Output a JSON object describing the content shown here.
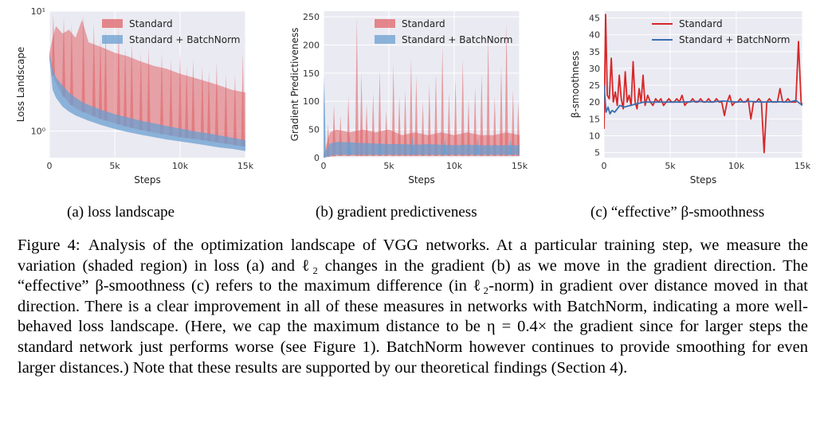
{
  "chart_data": [
    {
      "type": "area",
      "panel": "a",
      "title": "",
      "xlabel": "Steps",
      "ylabel": "Loss Landscape",
      "yscale": "log",
      "xlim": [
        0,
        15000
      ],
      "ylim": [
        0.6,
        10
      ],
      "xticks": [
        0,
        5000,
        10000,
        15000
      ],
      "xtick_labels": [
        "0",
        "5k",
        "10k",
        "15k"
      ],
      "yticks": [
        1,
        10
      ],
      "ytick_labels": [
        "10⁰",
        "10¹"
      ],
      "grid": true,
      "legend_position": "top-center",
      "series": [
        {
          "name": "Standard",
          "color": "#e06468",
          "x": [
            0,
            250,
            500,
            1000,
            1500,
            2000,
            2500,
            3000,
            4000,
            5000,
            6000,
            7000,
            8000,
            9000,
            10000,
            11000,
            12000,
            13000,
            14000,
            15000
          ],
          "lower": [
            4.0,
            3.0,
            2.5,
            2.0,
            1.7,
            1.55,
            1.45,
            1.38,
            1.25,
            1.16,
            1.08,
            1.02,
            0.97,
            0.93,
            0.89,
            0.86,
            0.83,
            0.8,
            0.77,
            0.74
          ],
          "upper": [
            4.5,
            6.0,
            7.5,
            6.5,
            7.0,
            6.0,
            8.5,
            5.5,
            5.0,
            4.5,
            4.2,
            3.8,
            3.5,
            3.3,
            3.0,
            2.8,
            2.6,
            2.4,
            2.2,
            2.1
          ],
          "spikes": [
            {
              "x": 300,
              "y": 9.5
            },
            {
              "x": 1100,
              "y": 9.0
            },
            {
              "x": 1700,
              "y": 8.0
            },
            {
              "x": 2600,
              "y": 9.5
            },
            {
              "x": 3400,
              "y": 8.0
            },
            {
              "x": 3900,
              "y": 6.0
            },
            {
              "x": 4300,
              "y": 7.0
            },
            {
              "x": 5300,
              "y": 7.5
            },
            {
              "x": 5800,
              "y": 5.0
            },
            {
              "x": 6300,
              "y": 5.5
            },
            {
              "x": 7000,
              "y": 4.5
            },
            {
              "x": 7600,
              "y": 5.0
            },
            {
              "x": 8600,
              "y": 4.5
            },
            {
              "x": 9300,
              "y": 4.0
            },
            {
              "x": 10000,
              "y": 4.5
            },
            {
              "x": 10500,
              "y": 3.5
            },
            {
              "x": 11000,
              "y": 4.0
            },
            {
              "x": 11700,
              "y": 3.5
            },
            {
              "x": 12200,
              "y": 3.2
            },
            {
              "x": 12800,
              "y": 3.8
            },
            {
              "x": 13500,
              "y": 3.0
            },
            {
              "x": 14200,
              "y": 3.0
            },
            {
              "x": 14800,
              "y": 4.5
            }
          ]
        },
        {
          "name": "Standard + BatchNorm",
          "color": "#6a9fd0",
          "x": [
            0,
            250,
            500,
            1000,
            1500,
            2000,
            2500,
            3000,
            4000,
            5000,
            6000,
            7000,
            8000,
            9000,
            10000,
            11000,
            12000,
            13000,
            14000,
            15000
          ],
          "lower": [
            4.0,
            2.2,
            1.9,
            1.6,
            1.45,
            1.35,
            1.28,
            1.22,
            1.12,
            1.04,
            0.98,
            0.93,
            0.89,
            0.85,
            0.82,
            0.79,
            0.76,
            0.73,
            0.71,
            0.68
          ],
          "upper": [
            4.5,
            3.3,
            2.8,
            2.4,
            2.1,
            1.9,
            1.75,
            1.65,
            1.5,
            1.38,
            1.3,
            1.22,
            1.16,
            1.1,
            1.05,
            1.0,
            0.96,
            0.92,
            0.88,
            0.84
          ]
        }
      ]
    },
    {
      "type": "area",
      "panel": "b",
      "title": "",
      "xlabel": "Steps",
      "ylabel": "Gradient Predictiveness",
      "xlim": [
        0,
        15000
      ],
      "ylim": [
        0,
        260
      ],
      "xticks": [
        0,
        5000,
        10000,
        15000
      ],
      "xtick_labels": [
        "0",
        "5k",
        "10k",
        "15k"
      ],
      "yticks": [
        0,
        50,
        100,
        150,
        200,
        250
      ],
      "ytick_labels": [
        "0",
        "50",
        "100",
        "150",
        "200",
        "250"
      ],
      "grid": true,
      "legend_position": "top-right",
      "series": [
        {
          "name": "Standard",
          "color": "#e06468",
          "x": [
            0,
            500,
            1000,
            2000,
            3000,
            4000,
            5000,
            6000,
            7000,
            8000,
            9000,
            10000,
            11000,
            12000,
            13000,
            14000,
            15000
          ],
          "lower": [
            0,
            2,
            3,
            3,
            3,
            3,
            3,
            3,
            3,
            3,
            3,
            3,
            3,
            3,
            3,
            3,
            3
          ],
          "upper": [
            5,
            45,
            50,
            45,
            50,
            45,
            50,
            40,
            45,
            40,
            45,
            40,
            45,
            40,
            40,
            45,
            40
          ],
          "spikes": [
            {
              "x": 350,
              "y": 60
            },
            {
              "x": 800,
              "y": 95
            },
            {
              "x": 1300,
              "y": 75
            },
            {
              "x": 1900,
              "y": 110
            },
            {
              "x": 2550,
              "y": 250
            },
            {
              "x": 2900,
              "y": 150
            },
            {
              "x": 3300,
              "y": 95
            },
            {
              "x": 3800,
              "y": 115
            },
            {
              "x": 4300,
              "y": 155
            },
            {
              "x": 4800,
              "y": 85
            },
            {
              "x": 5350,
              "y": 165
            },
            {
              "x": 5800,
              "y": 110
            },
            {
              "x": 6250,
              "y": 120
            },
            {
              "x": 6700,
              "y": 175
            },
            {
              "x": 7100,
              "y": 145
            },
            {
              "x": 7600,
              "y": 100
            },
            {
              "x": 8100,
              "y": 130
            },
            {
              "x": 8600,
              "y": 150
            },
            {
              "x": 9100,
              "y": 200
            },
            {
              "x": 9600,
              "y": 115
            },
            {
              "x": 10100,
              "y": 140
            },
            {
              "x": 10650,
              "y": 175
            },
            {
              "x": 11100,
              "y": 105
            },
            {
              "x": 11600,
              "y": 125
            },
            {
              "x": 12100,
              "y": 150
            },
            {
              "x": 12600,
              "y": 215
            },
            {
              "x": 13100,
              "y": 110
            },
            {
              "x": 13600,
              "y": 165
            },
            {
              "x": 14000,
              "y": 240
            },
            {
              "x": 14500,
              "y": 120
            },
            {
              "x": 14900,
              "y": 100
            }
          ]
        },
        {
          "name": "Standard + BatchNorm",
          "color": "#6a9fd0",
          "x": [
            0,
            500,
            1000,
            2000,
            3000,
            4000,
            5000,
            6000,
            7000,
            8000,
            9000,
            10000,
            11000,
            12000,
            13000,
            14000,
            15000
          ],
          "lower": [
            0,
            3,
            5,
            5,
            5,
            5,
            5,
            5,
            5,
            5,
            5,
            5,
            5,
            5,
            5,
            5,
            5
          ],
          "upper": [
            5,
            25,
            28,
            27,
            26,
            25,
            24,
            24,
            23,
            24,
            23,
            22,
            23,
            22,
            22,
            22,
            22
          ],
          "spikes": [
            {
              "x": 50,
              "y": 145
            },
            {
              "x": 2000,
              "y": 40
            },
            {
              "x": 4300,
              "y": 35
            },
            {
              "x": 6800,
              "y": 38
            },
            {
              "x": 9300,
              "y": 33
            },
            {
              "x": 11800,
              "y": 35
            },
            {
              "x": 14300,
              "y": 32
            }
          ]
        }
      ]
    },
    {
      "type": "line",
      "panel": "c",
      "title": "",
      "xlabel": "Steps",
      "ylabel": "β-smoothness",
      "xlim": [
        0,
        15000
      ],
      "ylim": [
        3.5,
        47
      ],
      "xticks": [
        0,
        5000,
        10000,
        15000
      ],
      "xtick_labels": [
        "0",
        "5k",
        "10k",
        "15k"
      ],
      "yticks": [
        5,
        10,
        15,
        20,
        25,
        30,
        35,
        40,
        45
      ],
      "ytick_labels": [
        "5",
        "10",
        "15",
        "20",
        "25",
        "30",
        "35",
        "40",
        "45"
      ],
      "grid": true,
      "legend_position": "top-right",
      "series": [
        {
          "name": "Standard",
          "color": "#d62728",
          "x": [
            0,
            120,
            250,
            400,
            550,
            700,
            850,
            1000,
            1150,
            1300,
            1450,
            1600,
            1750,
            1900,
            2050,
            2200,
            2350,
            2500,
            2650,
            2800,
            2950,
            3100,
            3300,
            3500,
            3700,
            3900,
            4100,
            4300,
            4500,
            4700,
            4900,
            5100,
            5300,
            5500,
            5700,
            5900,
            6100,
            6300,
            6500,
            6700,
            6900,
            7100,
            7300,
            7500,
            7700,
            7900,
            8100,
            8300,
            8500,
            8700,
            8900,
            9100,
            9300,
            9500,
            9700,
            9900,
            10100,
            10300,
            10500,
            10700,
            10900,
            11100,
            11300,
            11500,
            11700,
            11900,
            12100,
            12300,
            12500,
            12700,
            12900,
            13100,
            13300,
            13500,
            13700,
            13900,
            14100,
            14300,
            14500,
            14700,
            14900,
            15000
          ],
          "y": [
            12,
            46,
            22,
            21,
            33,
            20,
            23,
            19,
            28,
            21,
            18,
            29,
            20,
            22,
            19,
            32,
            20,
            18,
            24,
            20,
            28,
            19,
            22,
            20,
            19,
            21,
            20,
            21,
            19,
            20,
            21,
            20,
            20,
            21,
            20,
            22,
            19,
            20,
            20,
            21,
            20,
            20,
            21,
            20,
            20,
            21,
            20,
            20,
            21,
            20,
            20,
            16,
            20,
            22,
            19,
            20,
            20,
            21,
            20,
            20,
            21,
            15,
            20,
            20,
            21,
            20,
            5,
            20,
            21,
            20,
            20,
            20,
            24,
            20,
            20,
            21,
            20,
            20,
            20,
            38,
            20,
            19
          ]
        },
        {
          "name": "Standard + BatchNorm",
          "color": "#3a6eb0",
          "x": [
            0,
            150,
            300,
            450,
            600,
            800,
            1000,
            1200,
            1500,
            2000,
            2500,
            3000,
            4000,
            5000,
            6000,
            7000,
            8000,
            9000,
            10000,
            11000,
            12000,
            13000,
            14000,
            14500,
            15000
          ],
          "y": [
            25,
            17,
            18.5,
            16.5,
            17.5,
            17,
            18,
            19,
            18.5,
            19,
            19.5,
            20,
            20,
            20,
            20,
            20.2,
            20,
            20.3,
            20,
            20.2,
            20,
            20.1,
            20,
            20.5,
            19
          ]
        }
      ]
    }
  ],
  "subcaptions": {
    "a": "(a) loss landscape",
    "b": "(b) gradient predictiveness",
    "c": "(c) “effective” β-smoothness"
  },
  "caption": {
    "label": "Figure 4:",
    "text": "Analysis of the optimization landscape of VGG networks. At a particular training step, we measure the variation (shaded region) in loss (a) and ℓ₂ changes in the gradient (b) as we move in the gradient direction. The “effective” β-smoothness (c) refers to the maximum difference (in ℓ₂-norm) in gradient over distance moved in that direction. There is a clear improvement in all of these measures in networks with BatchNorm, indicating a more well-behaved loss landscape. (Here, we cap the maximum distance to be η = 0.4× the gradient since for larger steps the standard network just performs worse (see Figure 1). BatchNorm however continues to provide smoothing for even larger distances.) Note that these results are supported by our theoretical findings (Section 4)."
  }
}
